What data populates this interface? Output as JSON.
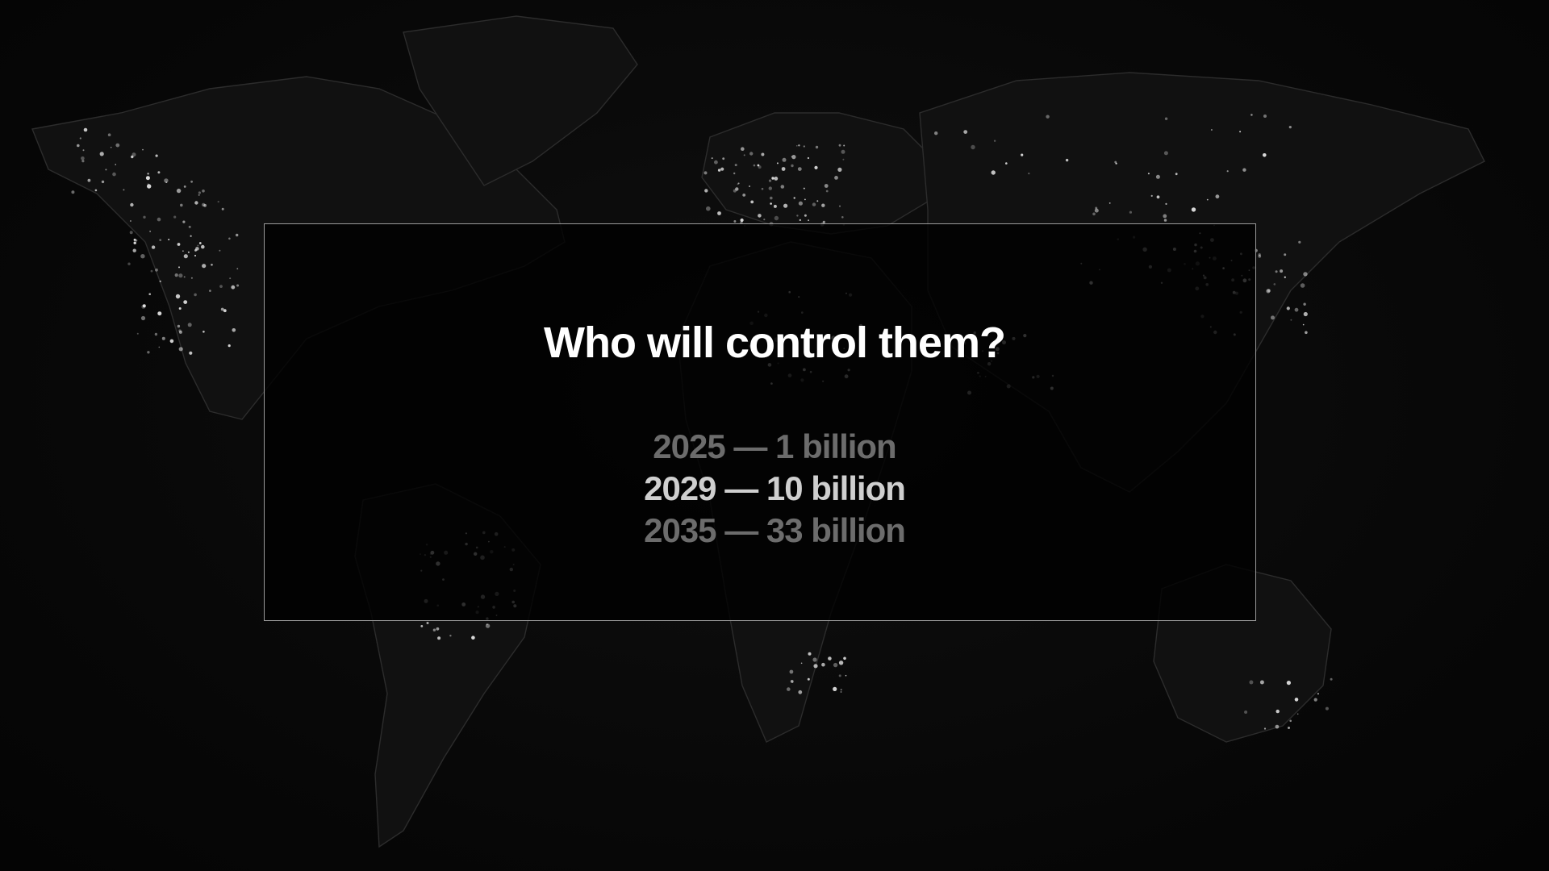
{
  "slide": {
    "headline": "Who will control them?",
    "projections": [
      {
        "year": "2025",
        "separator": "—",
        "value": "1 billion",
        "emphasis": "dim"
      },
      {
        "year": "2029",
        "separator": "—",
        "value": "10 billion",
        "emphasis": "highlight"
      },
      {
        "year": "2035",
        "separator": "—",
        "value": "33 billion",
        "emphasis": "dim"
      }
    ]
  },
  "background": {
    "image": "world-map-night-lights",
    "colors": {
      "base": "#080808",
      "lights": "#ffffff",
      "panel_border": "#9a9a9a"
    }
  }
}
